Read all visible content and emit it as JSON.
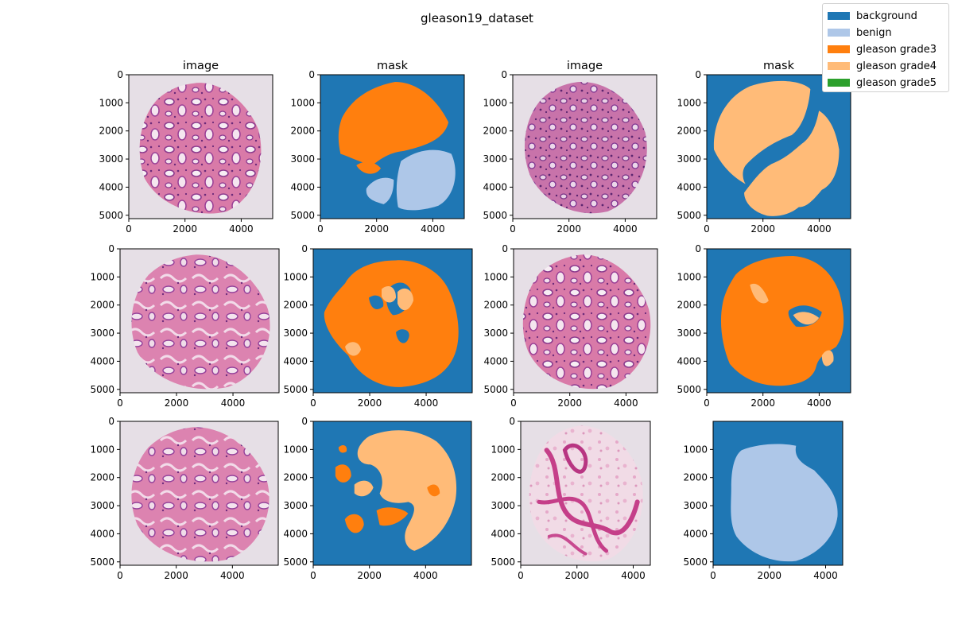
{
  "chart_data": {
    "type": "image-grid",
    "title": "gleason19_dataset",
    "legend": {
      "placement": "top-right",
      "entries": [
        {
          "label": "background",
          "color": "#1f77b4"
        },
        {
          "label": "benign",
          "color": "#aec7e8"
        },
        {
          "label": "gleason grade3",
          "color": "#ff7f0e"
        },
        {
          "label": "gleason grade4",
          "color": "#ffbb78"
        },
        {
          "label": "gleason grade5",
          "color": "#2ca02c"
        }
      ]
    },
    "panels": [
      {
        "row": 0,
        "col": 0,
        "kind": "image",
        "title": "image",
        "xlim": [
          0,
          5120
        ],
        "ylim": [
          5120,
          0
        ],
        "xticks": [
          0,
          2000,
          4000
        ],
        "yticks": [
          0,
          1000,
          2000,
          3000,
          4000,
          5000
        ]
      },
      {
        "row": 0,
        "col": 1,
        "kind": "mask",
        "title": "mask",
        "xlim": [
          0,
          5120
        ],
        "ylim": [
          5120,
          0
        ],
        "xticks": [
          0,
          2000,
          4000
        ],
        "yticks": [
          0,
          1000,
          2000,
          3000,
          4000,
          5000
        ]
      },
      {
        "row": 0,
        "col": 2,
        "kind": "image",
        "title": "image",
        "xlim": [
          0,
          5120
        ],
        "ylim": [
          5120,
          0
        ],
        "xticks": [
          0,
          2000,
          4000
        ],
        "yticks": [
          0,
          1000,
          2000,
          3000,
          4000,
          5000
        ]
      },
      {
        "row": 0,
        "col": 3,
        "kind": "mask",
        "title": "mask",
        "xlim": [
          0,
          5120
        ],
        "ylim": [
          5120,
          0
        ],
        "xticks": [
          0,
          2000,
          4000
        ],
        "yticks": [
          0,
          1000,
          2000,
          3000,
          4000,
          5000
        ]
      },
      {
        "row": 1,
        "col": 0,
        "kind": "image",
        "title": "",
        "xlim": [
          0,
          5632
        ],
        "ylim": [
          5120,
          0
        ],
        "xticks": [
          0,
          2000,
          4000
        ],
        "yticks": [
          0,
          1000,
          2000,
          3000,
          4000,
          5000
        ]
      },
      {
        "row": 1,
        "col": 1,
        "kind": "mask",
        "title": "",
        "xlim": [
          0,
          5632
        ],
        "ylim": [
          5120,
          0
        ],
        "xticks": [
          0,
          2000,
          4000
        ],
        "yticks": [
          0,
          1000,
          2000,
          3000,
          4000,
          5000
        ]
      },
      {
        "row": 1,
        "col": 2,
        "kind": "image",
        "title": "",
        "xlim": [
          0,
          5120
        ],
        "ylim": [
          5120,
          0
        ],
        "xticks": [
          0,
          2000,
          4000
        ],
        "yticks": [
          0,
          1000,
          2000,
          3000,
          4000,
          5000
        ]
      },
      {
        "row": 1,
        "col": 3,
        "kind": "mask",
        "title": "",
        "xlim": [
          0,
          5120
        ],
        "ylim": [
          5120,
          0
        ],
        "xticks": [
          0,
          2000,
          4000
        ],
        "yticks": [
          0,
          1000,
          2000,
          3000,
          4000,
          5000
        ]
      },
      {
        "row": 2,
        "col": 0,
        "kind": "image",
        "title": "",
        "xlim": [
          0,
          5632
        ],
        "ylim": [
          5120,
          0
        ],
        "xticks": [
          0,
          2000,
          4000
        ],
        "yticks": [
          0,
          1000,
          2000,
          3000,
          4000,
          5000
        ]
      },
      {
        "row": 2,
        "col": 1,
        "kind": "mask",
        "title": "",
        "xlim": [
          0,
          5632
        ],
        "ylim": [
          5120,
          0
        ],
        "xticks": [
          0,
          2000,
          4000
        ],
        "yticks": [
          0,
          1000,
          2000,
          3000,
          4000,
          5000
        ]
      },
      {
        "row": 2,
        "col": 2,
        "kind": "image",
        "title": "",
        "xlim": [
          0,
          4608
        ],
        "ylim": [
          5120,
          0
        ],
        "xticks": [
          0,
          2000,
          4000
        ],
        "yticks": [
          0,
          1000,
          2000,
          3000,
          4000,
          5000
        ]
      },
      {
        "row": 2,
        "col": 3,
        "kind": "mask",
        "title": "",
        "xlim": [
          0,
          4608
        ],
        "ylim": [
          5120,
          0
        ],
        "xticks": [
          0,
          2000,
          4000
        ],
        "yticks": [
          1000,
          2000,
          3000,
          4000,
          5000
        ]
      }
    ]
  }
}
